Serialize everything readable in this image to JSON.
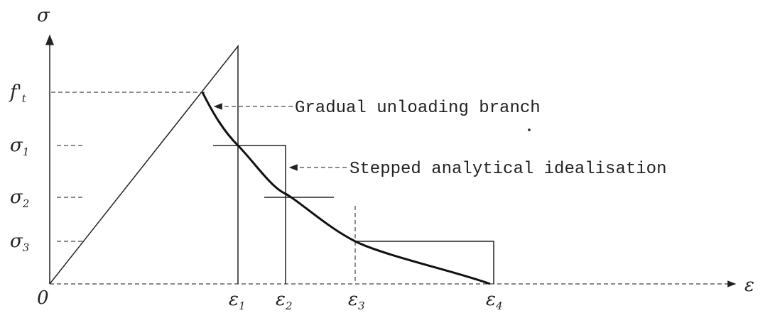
{
  "axes": {
    "y_label": "σ",
    "x_label": "ε",
    "origin": "0"
  },
  "y_levels": [
    {
      "symbol": "f'",
      "subscript": "t"
    },
    {
      "symbol": "σ",
      "subscript": "1"
    },
    {
      "symbol": "σ",
      "subscript": "2"
    },
    {
      "symbol": "σ",
      "subscript": "3"
    }
  ],
  "x_levels": [
    {
      "symbol": "ε",
      "subscript": "1"
    },
    {
      "symbol": "ε",
      "subscript": "2"
    },
    {
      "symbol": "ε",
      "subscript": "3"
    },
    {
      "symbol": "ε",
      "subscript": "4"
    }
  ],
  "annotations": [
    "Gradual unloading branch",
    "Stepped analytical idealisation"
  ]
}
